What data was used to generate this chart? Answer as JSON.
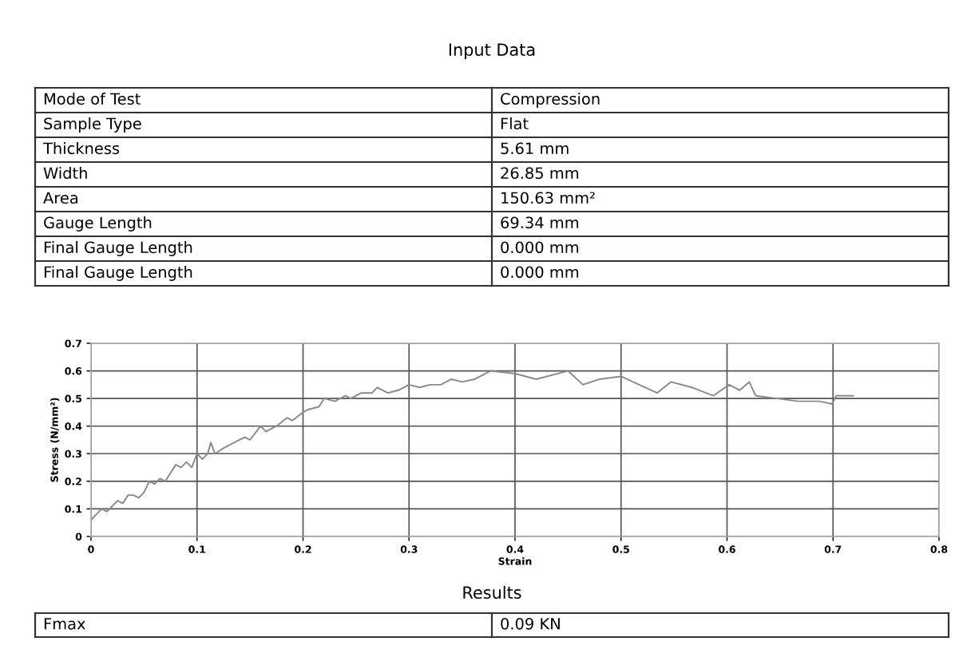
{
  "chart_data": [
    {
      "type": "other",
      "title": "Input Data",
      "annotations": [
        "Mode of Test",
        "Compression",
        "Sample Type",
        "Flat",
        "Thickness",
        "5.61 mm",
        "Width",
        "26.85 mm",
        "Area",
        "150.63 mm²",
        "Gauge Length",
        "69.34 mm",
        "Final Gauge Length",
        "0.000 mm",
        "Final Gauge Length",
        "0.000 mm"
      ]
    },
    {
      "type": "line",
      "xlabel": "Strain",
      "ylabel": "Stress (N/mm²)",
      "xlim": [
        0,
        0.8
      ],
      "ylim": [
        0,
        0.7
      ],
      "xticks": [
        0,
        0.1,
        0.2,
        0.3,
        0.4,
        0.5,
        0.6,
        0.7,
        0.8
      ],
      "yticks": [
        0,
        0.1,
        0.2,
        0.3,
        0.4,
        0.5,
        0.6,
        0.7
      ],
      "grid": true,
      "legend": false,
      "marker": "none",
      "line_style": "solid",
      "series": [
        {
          "color": "#8a8a8a",
          "x": [
            0.0,
            0.005,
            0.01,
            0.015,
            0.02,
            0.025,
            0.03,
            0.035,
            0.04,
            0.045,
            0.05,
            0.055,
            0.06,
            0.065,
            0.07,
            0.075,
            0.08,
            0.085,
            0.09,
            0.095,
            0.1,
            0.105,
            0.11,
            0.113,
            0.117,
            0.125,
            0.135,
            0.145,
            0.15,
            0.16,
            0.165,
            0.175,
            0.185,
            0.19,
            0.2,
            0.205,
            0.215,
            0.22,
            0.23,
            0.24,
            0.245,
            0.255,
            0.265,
            0.27,
            0.28,
            0.29,
            0.3,
            0.31,
            0.32,
            0.33,
            0.34,
            0.35,
            0.362,
            0.377,
            0.4,
            0.42,
            0.45,
            0.464,
            0.48,
            0.5,
            0.517,
            0.534,
            0.547,
            0.567,
            0.587,
            0.602,
            0.612,
            0.621,
            0.627,
            0.647,
            0.667,
            0.687,
            0.699,
            0.703,
            0.719
          ],
          "values": [
            0.06,
            0.08,
            0.1,
            0.09,
            0.11,
            0.13,
            0.12,
            0.15,
            0.15,
            0.14,
            0.16,
            0.2,
            0.19,
            0.21,
            0.2,
            0.23,
            0.26,
            0.25,
            0.27,
            0.25,
            0.3,
            0.28,
            0.3,
            0.34,
            0.3,
            0.32,
            0.34,
            0.36,
            0.35,
            0.4,
            0.38,
            0.4,
            0.43,
            0.42,
            0.45,
            0.46,
            0.47,
            0.5,
            0.49,
            0.51,
            0.5,
            0.52,
            0.52,
            0.54,
            0.52,
            0.53,
            0.55,
            0.54,
            0.55,
            0.55,
            0.57,
            0.56,
            0.57,
            0.6,
            0.59,
            0.57,
            0.6,
            0.55,
            0.57,
            0.58,
            0.55,
            0.52,
            0.56,
            0.54,
            0.51,
            0.55,
            0.53,
            0.56,
            0.51,
            0.5,
            0.49,
            0.49,
            0.48,
            0.51,
            0.51
          ]
        }
      ]
    },
    {
      "type": "other",
      "title": "Results",
      "annotations": [
        "Fmax",
        "0.09 KN"
      ]
    }
  ]
}
